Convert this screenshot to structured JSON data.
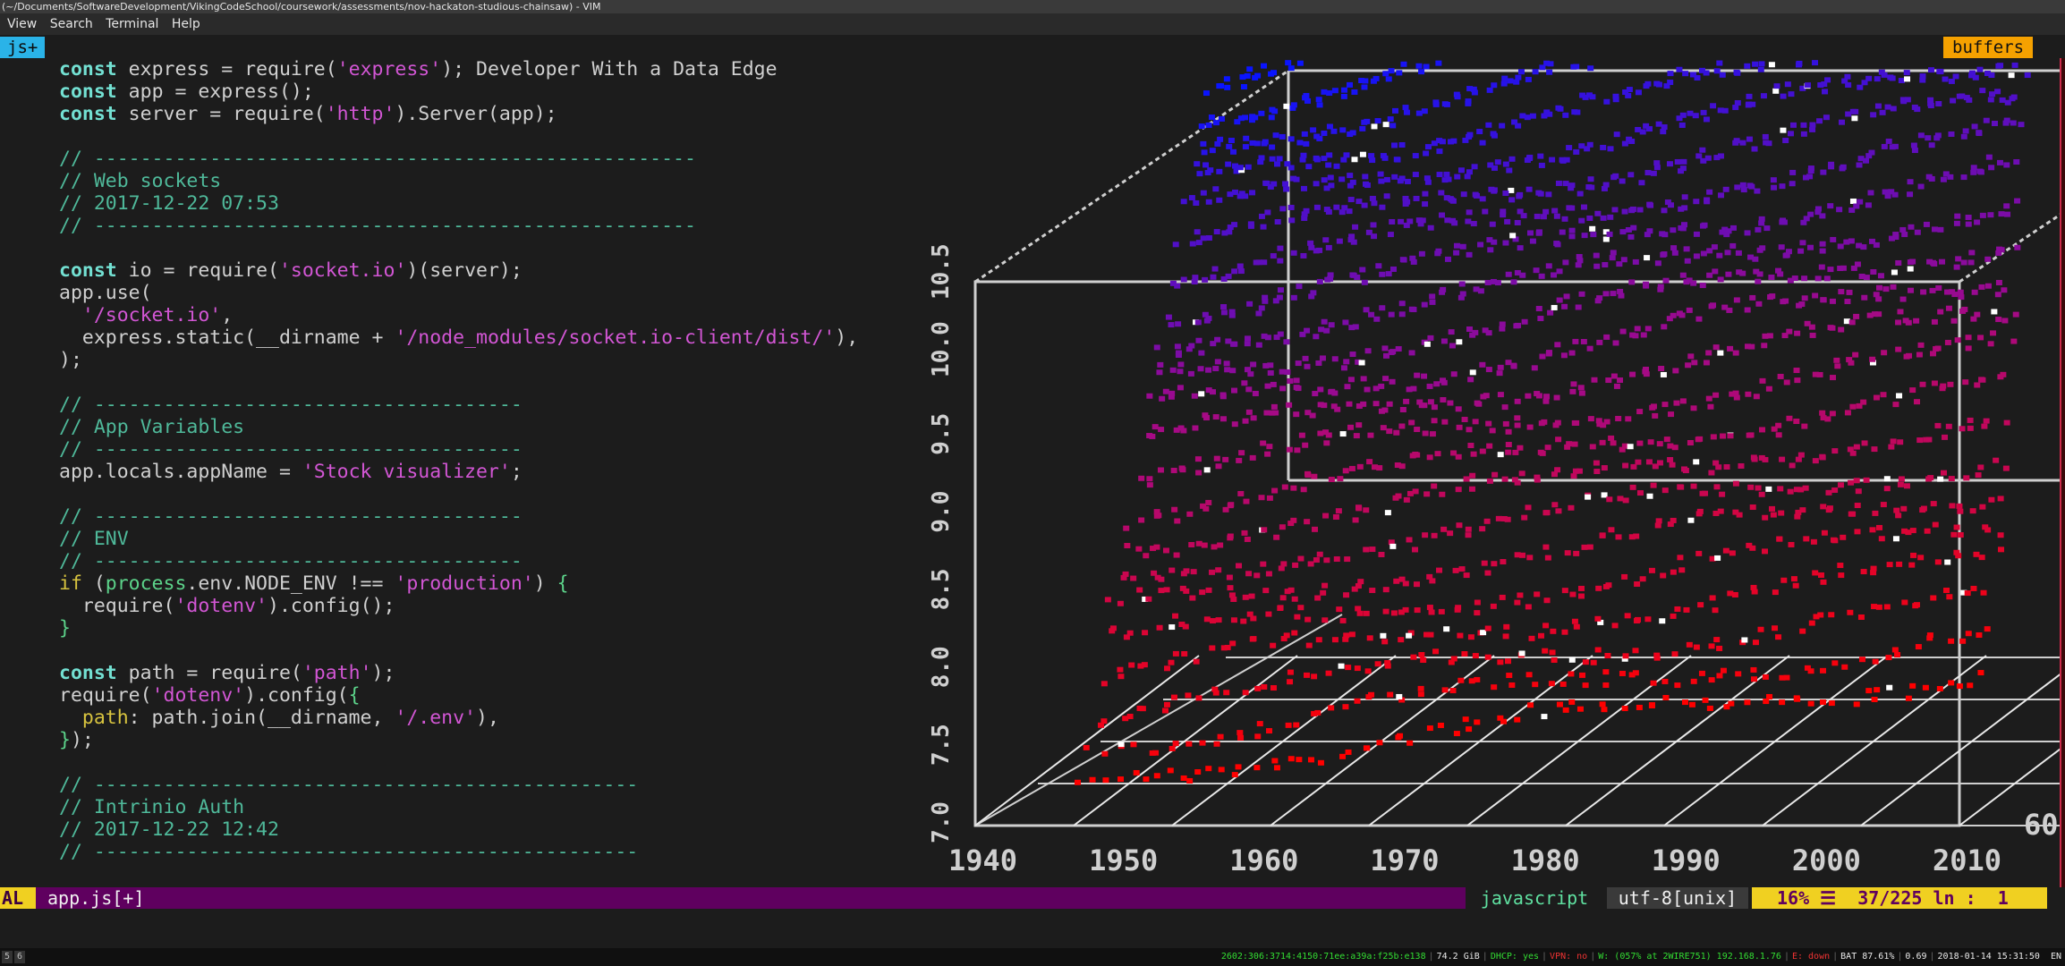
{
  "window": {
    "title": "(~/Documents/SoftwareDevelopment/VikingCodeSchool/coursework/assessments/nov-hackaton-studious-chainsaw) - VIM"
  },
  "menu": [
    "View",
    "Search",
    "Terminal",
    "Help"
  ],
  "tabline": {
    "active_tab": "js+",
    "buffers_label": "buffers"
  },
  "code_lines": [
    [
      {
        "c": "kw",
        "t": "const"
      },
      {
        "c": "pl",
        "t": " express = require("
      },
      {
        "c": "str",
        "t": "'express'"
      },
      {
        "c": "pl",
        "t": "); Developer With a Data Edge"
      }
    ],
    [
      {
        "c": "kw",
        "t": "const"
      },
      {
        "c": "pl",
        "t": " app = express();"
      }
    ],
    [
      {
        "c": "kw",
        "t": "const"
      },
      {
        "c": "pl",
        "t": " server = require("
      },
      {
        "c": "str",
        "t": "'http'"
      },
      {
        "c": "pl",
        "t": ").Server(app);"
      }
    ],
    [],
    [
      {
        "c": "cm",
        "t": "// ----------------------------------------------------"
      }
    ],
    [
      {
        "c": "cm",
        "t": "// Web sockets"
      }
    ],
    [
      {
        "c": "cm",
        "t": "// 2017-12-22 07:53"
      }
    ],
    [
      {
        "c": "cm",
        "t": "// ----------------------------------------------------"
      }
    ],
    [],
    [
      {
        "c": "kw",
        "t": "const"
      },
      {
        "c": "pl",
        "t": " io = require("
      },
      {
        "c": "str",
        "t": "'socket.io'"
      },
      {
        "c": "pl",
        "t": ")(server);"
      }
    ],
    [
      {
        "c": "pl",
        "t": "app.use("
      }
    ],
    [
      {
        "c": "pl",
        "t": "  "
      },
      {
        "c": "str",
        "t": "'/socket.io'"
      },
      {
        "c": "pl",
        "t": ","
      }
    ],
    [
      {
        "c": "pl",
        "t": "  express.static(__dirname + "
      },
      {
        "c": "str",
        "t": "'/node_modules/socket.io-client/dist/'"
      },
      {
        "c": "pl",
        "t": "),"
      }
    ],
    [
      {
        "c": "pl",
        "t": ");"
      }
    ],
    [],
    [
      {
        "c": "cm",
        "t": "// -------------------------------------"
      }
    ],
    [
      {
        "c": "cm",
        "t": "// App Variables"
      }
    ],
    [
      {
        "c": "cm",
        "t": "// -------------------------------------"
      }
    ],
    [
      {
        "c": "pl",
        "t": "app.locals.appName = "
      },
      {
        "c": "str",
        "t": "'Stock visualizer'"
      },
      {
        "c": "pl",
        "t": ";"
      }
    ],
    [],
    [
      {
        "c": "cm",
        "t": "// -------------------------------------"
      }
    ],
    [
      {
        "c": "cm",
        "t": "// ENV"
      }
    ],
    [
      {
        "c": "cm",
        "t": "// -------------------------------------"
      }
    ],
    [
      {
        "c": "yl",
        "t": "if"
      },
      {
        "c": "pl",
        "t": " ("
      },
      {
        "c": "grn",
        "t": "process"
      },
      {
        "c": "pl",
        "t": ".env.NODE_ENV !== "
      },
      {
        "c": "str",
        "t": "'production'"
      },
      {
        "c": "pl",
        "t": ") "
      },
      {
        "c": "grn",
        "t": "{"
      }
    ],
    [
      {
        "c": "pl",
        "t": "  require("
      },
      {
        "c": "str",
        "t": "'dotenv'"
      },
      {
        "c": "pl",
        "t": ").config();"
      }
    ],
    [
      {
        "c": "grn",
        "t": "}"
      }
    ],
    [],
    [
      {
        "c": "kw",
        "t": "const"
      },
      {
        "c": "pl",
        "t": " path = require("
      },
      {
        "c": "str",
        "t": "'path'"
      },
      {
        "c": "pl",
        "t": ");"
      }
    ],
    [
      {
        "c": "pl",
        "t": "require("
      },
      {
        "c": "str",
        "t": "'dotenv'"
      },
      {
        "c": "pl",
        "t": ").config("
      },
      {
        "c": "grn",
        "t": "{"
      }
    ],
    [
      {
        "c": "pl",
        "t": "  "
      },
      {
        "c": "yl",
        "t": "path"
      },
      {
        "c": "pl",
        "t": ": path.join(__dirname, "
      },
      {
        "c": "str",
        "t": "'/.env'"
      },
      {
        "c": "pl",
        "t": "),"
      }
    ],
    [
      {
        "c": "grn",
        "t": "}"
      },
      {
        "c": "pl",
        "t": ");"
      }
    ],
    [],
    [
      {
        "c": "cm",
        "t": "// -----------------------------------------------"
      }
    ],
    [
      {
        "c": "cm",
        "t": "// Intrinio Auth"
      }
    ],
    [
      {
        "c": "cm",
        "t": "// 2017-12-22 12:42"
      }
    ],
    [
      {
        "c": "cm",
        "t": "// -----------------------------------------------"
      }
    ]
  ],
  "plot": {
    "x_ticks": [
      "1940",
      "1950",
      "1960",
      "1970",
      "1980",
      "1990",
      "2000",
      "2010"
    ],
    "y_ticks": [
      "7.0",
      "7.5",
      "8.0",
      "8.5",
      "9.0",
      "9.5",
      "10.0",
      "10.5"
    ],
    "right_edge_label": "60",
    "colors": {
      "low": "#ff0000",
      "mid": "#c8007a",
      "high": "#0010ff",
      "frame": "#cfcfcf"
    }
  },
  "statusline": {
    "mode": "AL",
    "filename": "app.js[+]",
    "filetype": "javascript",
    "encoding": "utf-8[unix]",
    "percent": "16%",
    "menu_glyph": "☰",
    "line": "37/225",
    "ln_label": "ln",
    "column": "1"
  },
  "i3bar": {
    "workspaces": [
      "5",
      "6"
    ],
    "ipv6": "2602:306:3714:4150:71ee:a39a:f25b:e138",
    "disk": "74.2 GiB",
    "dhcp": "DHCP: yes",
    "vpn": "VPN: no",
    "wifi": "W: (057% at 2WIRE751) 192.168.1.76",
    "ethernet": "E: down",
    "battery": "BAT 87.61%",
    "load": "0.69",
    "datetime": "2018-01-14 15:31:50",
    "lang": "EN"
  }
}
